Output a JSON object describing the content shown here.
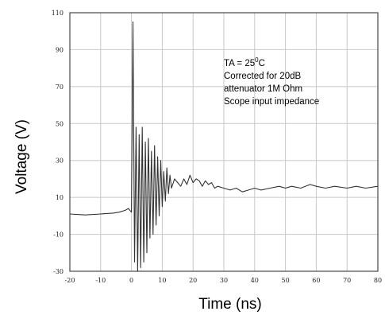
{
  "chart_data": {
    "type": "line",
    "xlabel": "Time (ns)",
    "ylabel": "Voltage (V)",
    "xlim": [
      -20,
      80
    ],
    "ylim": [
      -30,
      110
    ],
    "x_ticks": [
      "-20",
      "-10",
      "0",
      "10",
      "20",
      "30",
      "40",
      "50",
      "60",
      "70",
      "80"
    ],
    "y_ticks": [
      "110",
      "90",
      "70",
      "50",
      "30",
      "10",
      "-10",
      "-30"
    ],
    "grid": true,
    "annotation": {
      "line1_prefix": "TA = 25",
      "line1_sup": "0",
      "line1_suffix": "C",
      "line2": "Corrected for 20dB",
      "line3": "attenuator 1M Ohm",
      "line4": "Scope input impedance"
    },
    "series": [
      {
        "color": "#333333",
        "x": [
          -20,
          -15,
          -10,
          -6,
          -4,
          -2,
          -1,
          0,
          0.5,
          1,
          1.5,
          2,
          2.5,
          3,
          3.5,
          4,
          4.5,
          5,
          5.5,
          6,
          6.5,
          7,
          7.5,
          8,
          8.5,
          9,
          9.5,
          10,
          10.5,
          11,
          11.5,
          12,
          12.5,
          13,
          14,
          15,
          16,
          17,
          18,
          19,
          20,
          21,
          22,
          23,
          24,
          25,
          26,
          27,
          28,
          30,
          32,
          34,
          36,
          38,
          40,
          42,
          45,
          48,
          50,
          52,
          55,
          58,
          60,
          63,
          66,
          70,
          73,
          76,
          80
        ],
        "y": [
          1,
          0.5,
          1,
          1.5,
          2,
          3,
          4,
          2,
          105,
          -25,
          48,
          -30,
          44,
          -28,
          48,
          -25,
          40,
          -20,
          42,
          -12,
          35,
          -10,
          38,
          -5,
          32,
          0,
          30,
          5,
          24,
          8,
          26,
          12,
          22,
          15,
          20,
          18,
          16,
          20,
          17,
          22,
          18,
          20,
          19,
          16,
          19,
          17,
          18,
          15,
          16,
          15,
          14,
          15,
          13,
          14,
          15,
          14,
          15,
          16,
          15,
          16,
          15,
          17,
          16,
          15,
          16,
          15,
          16,
          15,
          16
        ]
      }
    ]
  }
}
